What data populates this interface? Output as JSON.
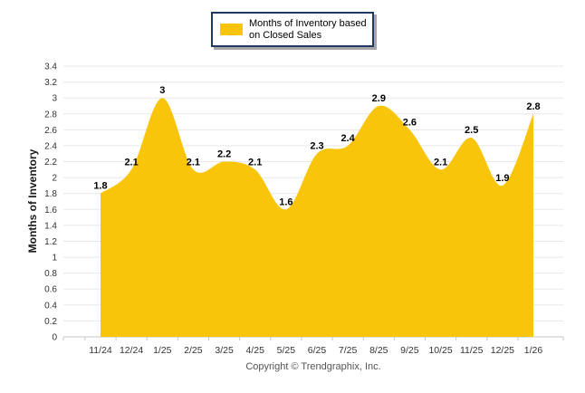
{
  "legend": {
    "line1": "Months of Inventory based",
    "line2": "on Closed Sales",
    "swatch_color": "#F8C50B",
    "border_color": "#1F3864"
  },
  "chart_data": {
    "type": "area",
    "title": "",
    "series_name": "Months of Inventory based on Closed Sales",
    "categories": [
      "11/24",
      "12/24",
      "1/25",
      "2/25",
      "3/25",
      "4/25",
      "5/25",
      "6/25",
      "7/25",
      "8/25",
      "9/25",
      "10/25",
      "11/25",
      "12/25",
      "1/26"
    ],
    "values": [
      1.8,
      2.1,
      3,
      2.1,
      2.2,
      2.1,
      1.6,
      2.3,
      2.4,
      2.9,
      2.6,
      2.1,
      2.5,
      1.9,
      2.8
    ],
    "xlabel": "",
    "ylabel": "Months of Inventory",
    "ylim": [
      0,
      3.4
    ],
    "ytick_step": 0.2,
    "grid": "horizontal-only",
    "legend_position": "top-center",
    "fill_color": "#F8C50B",
    "grid_color": "#e8e8e8",
    "axis_line_color": "#c6c6c6",
    "tick_label_color": "#333333",
    "data_label_color": "#000000",
    "smooth": true,
    "data_labels": true
  },
  "footer": {
    "copyright": "Copyright © Trendgraphix, Inc."
  }
}
